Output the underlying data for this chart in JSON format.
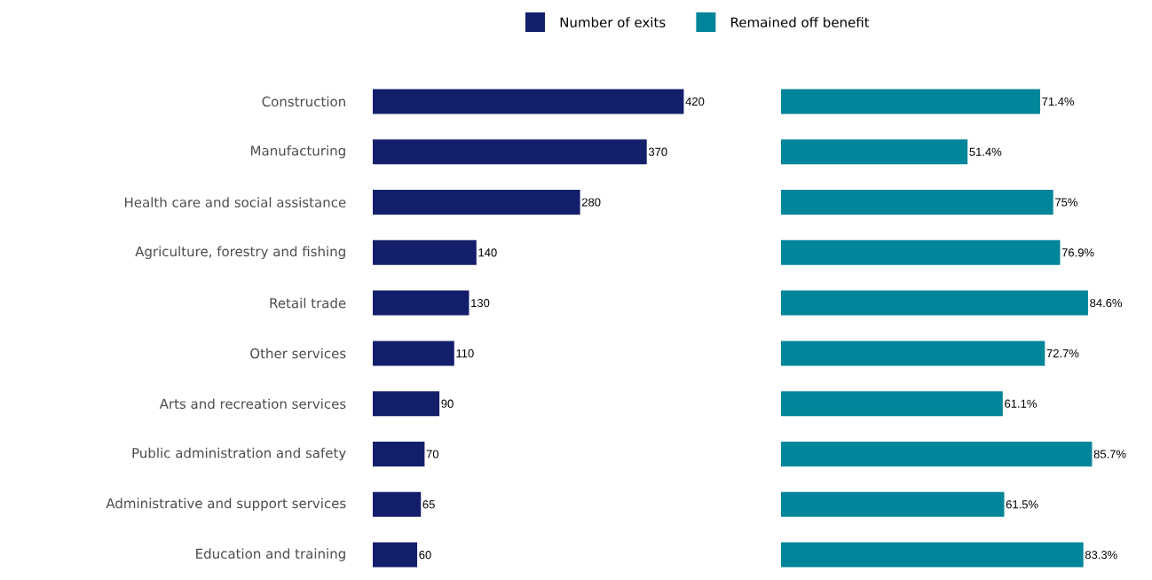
{
  "chart_data": [
    {
      "type": "bar",
      "orientation": "horizontal",
      "legend": "top",
      "tick_labels": "y",
      "data_labels": true,
      "categories": [
        "Construction",
        "Manufacturing",
        "Health care and social assistance",
        "Agriculture, forestry and fishing",
        "Retail trade",
        "Other services",
        "Arts and recreation services",
        "Public administration and safety",
        "Administrative and support services",
        "Education and training"
      ],
      "series": [
        {
          "name": "Number of exits",
          "color": "#141f6b",
          "values": [
            420,
            370,
            280,
            140,
            130,
            110,
            90,
            70,
            65,
            60
          ]
        }
      ]
    },
    {
      "type": "bar",
      "orientation": "horizontal",
      "legend": "top",
      "tick_labels": false,
      "categories": [
        null,
        null,
        null,
        null,
        null,
        null,
        null,
        null,
        null,
        null
      ],
      "series": [
        {
          "name": "Remained off benefit",
          "color": "#00859a",
          "values": [
            71.4,
            51.4,
            75,
            76.9,
            84.6,
            72.7,
            61.1,
            85.7,
            61.5,
            83.3
          ],
          "value_labels": [
            "71.4%",
            "51.4%",
            "75%",
            "76.9%",
            "84.6%",
            "72.7%",
            "61.1%",
            "85.7%",
            "61.5%",
            "83.3%"
          ]
        }
      ]
    }
  ]
}
